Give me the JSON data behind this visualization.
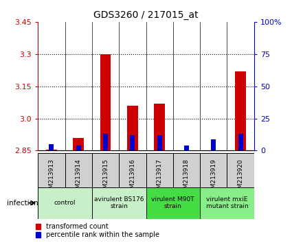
{
  "title": "GDS3260 / 217015_at",
  "samples": [
    "GSM213913",
    "GSM213914",
    "GSM213915",
    "GSM213916",
    "GSM213917",
    "GSM213918",
    "GSM213919",
    "GSM213920"
  ],
  "red_values": [
    2.856,
    2.91,
    3.3,
    3.06,
    3.07,
    2.852,
    2.851,
    3.22
  ],
  "blue_values": [
    5,
    4,
    13,
    12,
    12,
    4,
    9,
    13
  ],
  "baseline": 2.85,
  "ylim_left": [
    2.85,
    3.45
  ],
  "ylim_right": [
    0,
    100
  ],
  "yticks_left": [
    2.85,
    3.0,
    3.15,
    3.3,
    3.45
  ],
  "yticks_right": [
    0,
    25,
    50,
    75,
    100
  ],
  "groups": [
    {
      "label": "control",
      "span": [
        0,
        2
      ],
      "color": "#c8f0c8"
    },
    {
      "label": "avirulent BS176\nstrain",
      "span": [
        2,
        4
      ],
      "color": "#c8f0c8"
    },
    {
      "label": "virulent M90T\nstrain",
      "span": [
        4,
        6
      ],
      "color": "#44dd44"
    },
    {
      "label": "virulent mxiE\nmutant strain",
      "span": [
        6,
        8
      ],
      "color": "#88ee88"
    }
  ],
  "infection_label": "infection",
  "red_color": "#cc0000",
  "blue_color": "#0000cc",
  "bar_width": 0.4,
  "blue_bar_width": 0.18,
  "plot_bg": "#ffffff",
  "sample_bg": "#d0d0d0",
  "legend_red": "transformed count",
  "legend_blue": "percentile rank within the sample",
  "grid_color": "#000000",
  "divider_color": "#000000"
}
